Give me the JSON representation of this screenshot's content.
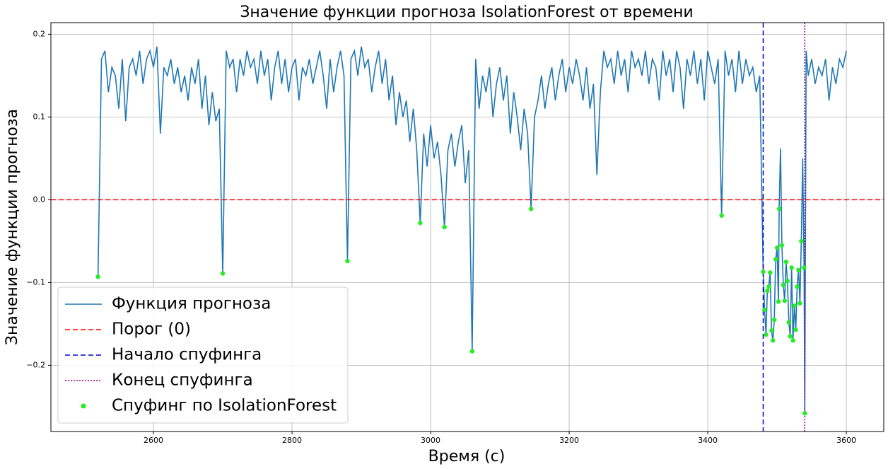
{
  "chart_data": {
    "type": "line",
    "title": "Значение функции прогноза IsolationForest от времени",
    "xlabel": "Время (с)",
    "ylabel": "Значение функции прогноза",
    "xlim": [
      2452,
      3654
    ],
    "ylim": [
      -0.28,
      0.214
    ],
    "xticks": [
      2600,
      2800,
      3000,
      3200,
      3400,
      3600
    ],
    "yticks": [
      {
        "value": -0.2,
        "label": "−0.2"
      },
      {
        "value": -0.1,
        "label": "−0.1"
      },
      {
        "value": 0,
        "label": "0.0"
      },
      {
        "value": 0.1,
        "label": "0.1"
      },
      {
        "value": 0.2,
        "label": "0.2"
      }
    ],
    "grid": true,
    "legend": "lower left",
    "series": [
      {
        "name": "Функция прогноза",
        "color": "#1f77b4",
        "x": [
          2520,
          2525,
          2530,
          2535,
          2540,
          2545,
          2550,
          2555,
          2560,
          2565,
          2570,
          2575,
          2580,
          2585,
          2590,
          2595,
          2600,
          2605,
          2610,
          2615,
          2620,
          2625,
          2630,
          2635,
          2640,
          2645,
          2650,
          2655,
          2660,
          2665,
          2670,
          2675,
          2680,
          2685,
          2690,
          2695,
          2700,
          2705,
          2710,
          2715,
          2720,
          2725,
          2730,
          2735,
          2740,
          2745,
          2750,
          2755,
          2760,
          2765,
          2770,
          2775,
          2780,
          2785,
          2790,
          2795,
          2800,
          2805,
          2810,
          2815,
          2820,
          2825,
          2830,
          2835,
          2840,
          2845,
          2850,
          2855,
          2860,
          2865,
          2870,
          2875,
          2880,
          2885,
          2890,
          2895,
          2900,
          2905,
          2910,
          2915,
          2920,
          2925,
          2930,
          2935,
          2940,
          2945,
          2950,
          2955,
          2960,
          2965,
          2970,
          2975,
          2980,
          2985,
          2990,
          2995,
          3000,
          3005,
          3010,
          3015,
          3020,
          3025,
          3030,
          3035,
          3040,
          3045,
          3050,
          3055,
          3060,
          3065,
          3070,
          3075,
          3080,
          3085,
          3090,
          3095,
          3100,
          3105,
          3110,
          3115,
          3120,
          3125,
          3130,
          3135,
          3140,
          3145,
          3150,
          3155,
          3160,
          3165,
          3170,
          3175,
          3180,
          3185,
          3190,
          3195,
          3200,
          3205,
          3210,
          3215,
          3220,
          3225,
          3230,
          3235,
          3240,
          3245,
          3250,
          3255,
          3260,
          3265,
          3270,
          3275,
          3280,
          3285,
          3290,
          3295,
          3300,
          3305,
          3310,
          3315,
          3320,
          3325,
          3330,
          3335,
          3340,
          3345,
          3350,
          3355,
          3360,
          3365,
          3370,
          3375,
          3380,
          3385,
          3390,
          3395,
          3400,
          3405,
          3410,
          3415,
          3420,
          3425,
          3430,
          3435,
          3440,
          3445,
          3450,
          3455,
          3460,
          3465,
          3470,
          3475,
          3480,
          3482,
          3484,
          3486,
          3488,
          3490,
          3492,
          3494,
          3496,
          3498,
          3500,
          3502,
          3503,
          3505,
          3507,
          3509,
          3511,
          3513,
          3515,
          3517,
          3519,
          3521,
          3523,
          3525,
          3527,
          3529,
          3531,
          3533,
          3535,
          3537,
          3539,
          3540,
          3542,
          3545,
          3550,
          3555,
          3560,
          3565,
          3570,
          3575,
          3580,
          3585,
          3590,
          3595,
          3600
        ],
        "values": [
          -0.093,
          0.17,
          0.18,
          0.13,
          0.16,
          0.15,
          0.11,
          0.17,
          0.095,
          0.16,
          0.17,
          0.15,
          0.18,
          0.14,
          0.17,
          0.18,
          0.16,
          0.185,
          0.08,
          0.16,
          0.15,
          0.17,
          0.14,
          0.16,
          0.13,
          0.15,
          0.12,
          0.16,
          0.14,
          0.17,
          0.11,
          0.15,
          0.09,
          0.13,
          0.095,
          0.11,
          -0.089,
          0.18,
          0.16,
          0.17,
          0.13,
          0.17,
          0.15,
          0.18,
          0.16,
          0.17,
          0.14,
          0.18,
          0.15,
          0.17,
          0.12,
          0.16,
          0.18,
          0.14,
          0.17,
          0.13,
          0.16,
          0.17,
          0.12,
          0.16,
          0.15,
          0.17,
          0.14,
          0.16,
          0.18,
          0.15,
          0.11,
          0.17,
          0.13,
          0.16,
          0.18,
          0.15,
          -0.074,
          0.17,
          0.18,
          0.15,
          0.185,
          0.16,
          0.17,
          0.13,
          0.16,
          0.18,
          0.14,
          0.17,
          0.12,
          0.15,
          0.09,
          0.13,
          0.1,
          0.12,
          0.07,
          0.11,
          0.06,
          -0.028,
          0.08,
          0.04,
          0.09,
          0.05,
          0.07,
          0.03,
          -0.033,
          0.06,
          0.08,
          0.04,
          0.07,
          0.09,
          0.02,
          0.06,
          -0.183,
          0.17,
          0.11,
          0.15,
          0.13,
          0.16,
          0.1,
          0.14,
          0.16,
          0.12,
          0.15,
          0.08,
          0.13,
          0.1,
          0.06,
          0.11,
          0.08,
          -0.011,
          0.1,
          0.12,
          0.15,
          0.11,
          0.14,
          0.16,
          0.12,
          0.15,
          0.17,
          0.13,
          0.16,
          0.14,
          0.17,
          0.15,
          0.12,
          0.16,
          0.11,
          0.14,
          0.03,
          0.13,
          0.18,
          0.16,
          0.17,
          0.14,
          0.18,
          0.15,
          0.17,
          0.13,
          0.18,
          0.16,
          0.17,
          0.15,
          0.18,
          0.14,
          0.17,
          0.16,
          0.12,
          0.18,
          0.15,
          0.17,
          0.13,
          0.18,
          0.16,
          0.11,
          0.17,
          0.15,
          0.18,
          0.14,
          0.17,
          0.12,
          0.18,
          0.16,
          0.14,
          0.17,
          -0.019,
          0.18,
          0.15,
          0.17,
          0.13,
          0.18,
          0.14,
          0.17,
          0.15,
          0.16,
          0.13,
          0.15,
          -0.087,
          -0.133,
          -0.163,
          -0.11,
          -0.105,
          -0.088,
          -0.158,
          -0.17,
          -0.145,
          -0.072,
          -0.058,
          -0.123,
          -0.011,
          0.062,
          -0.055,
          -0.103,
          -0.122,
          -0.075,
          -0.098,
          -0.148,
          -0.165,
          -0.082,
          -0.17,
          -0.128,
          -0.157,
          -0.105,
          -0.085,
          -0.125,
          -0.05,
          0.05,
          -0.082,
          -0.258,
          0.18,
          0.15,
          0.17,
          0.14,
          0.16,
          0.15,
          0.17,
          0.12,
          0.16,
          0.14,
          0.17,
          0.16,
          0.18
        ]
      }
    ],
    "hlines": [
      {
        "name": "Порог (0)",
        "y": 0,
        "color": "#ff0000",
        "dash": "7 4"
      }
    ],
    "vlines": [
      {
        "name": "Начало спуфинга",
        "x": 3480,
        "color": "#0000cc",
        "dash": "7 4"
      },
      {
        "name": "Конец спуфинга",
        "x": 3540,
        "color": "#990099",
        "dash": "2 2"
      }
    ],
    "scatter": {
      "name": "Спуфинг по IsolationForest",
      "color": "#22ee22",
      "x": [
        2520,
        2700,
        2880,
        2985,
        3020,
        3060,
        3145,
        3420,
        3480,
        3482,
        3484,
        3486,
        3488,
        3490,
        3492,
        3494,
        3496,
        3498,
        3500,
        3502,
        3503,
        3507,
        3509,
        3511,
        3513,
        3515,
        3517,
        3519,
        3521,
        3523,
        3525,
        3527,
        3529,
        3531,
        3533,
        3535,
        3539,
        3540
      ],
      "values": [
        -0.093,
        -0.089,
        -0.074,
        -0.028,
        -0.033,
        -0.183,
        -0.011,
        -0.019,
        -0.087,
        -0.133,
        -0.163,
        -0.11,
        -0.105,
        -0.088,
        -0.158,
        -0.17,
        -0.145,
        -0.072,
        -0.058,
        -0.123,
        -0.011,
        -0.055,
        -0.103,
        -0.122,
        -0.075,
        -0.098,
        -0.148,
        -0.165,
        -0.082,
        -0.17,
        -0.128,
        -0.157,
        -0.105,
        -0.085,
        -0.125,
        -0.05,
        -0.082,
        -0.258
      ]
    }
  }
}
